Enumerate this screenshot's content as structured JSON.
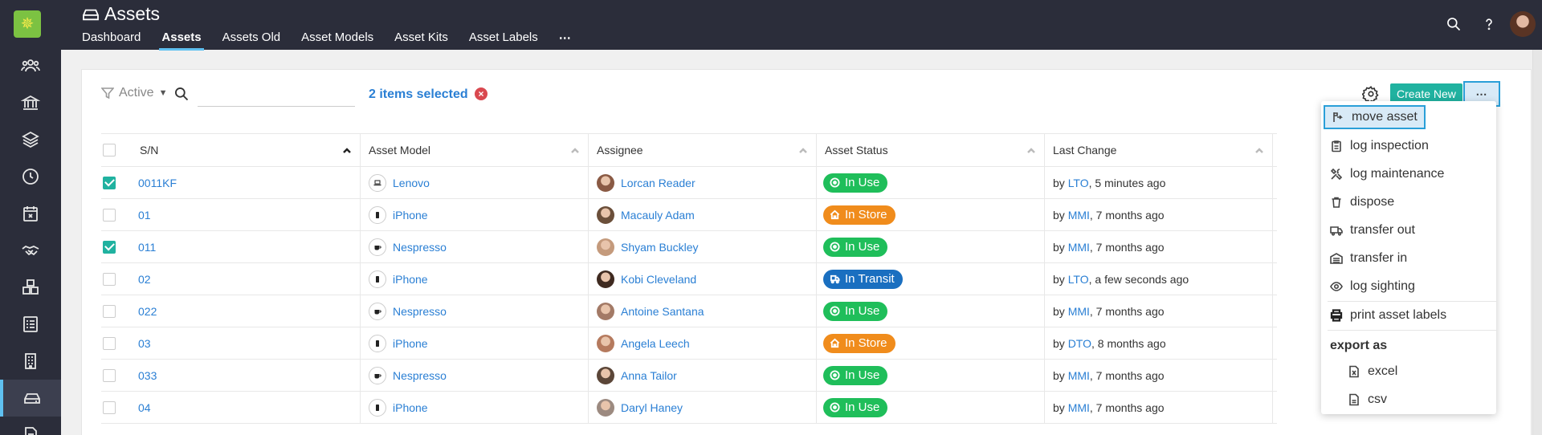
{
  "header": {
    "title": "Assets",
    "tabs": [
      {
        "label": "Dashboard",
        "active": false
      },
      {
        "label": "Assets",
        "active": true
      },
      {
        "label": "Assets Old",
        "active": false
      },
      {
        "label": "Asset Models",
        "active": false
      },
      {
        "label": "Asset Kits",
        "active": false
      },
      {
        "label": "Asset Labels",
        "active": false
      }
    ],
    "more_tabs": "⋯",
    "icons": [
      "search-icon",
      "help-icon",
      "user-avatar"
    ]
  },
  "sidebar": {
    "logo": "✵",
    "items": [
      {
        "icon": "people-icon",
        "active": false
      },
      {
        "icon": "bank-icon",
        "active": false
      },
      {
        "icon": "layers-icon",
        "active": false
      },
      {
        "icon": "clock-icon",
        "active": false
      },
      {
        "icon": "calendar-x-icon",
        "active": false
      },
      {
        "icon": "handshake-icon",
        "active": false
      },
      {
        "icon": "boxes-icon",
        "active": false
      },
      {
        "icon": "checklist-icon",
        "active": false
      },
      {
        "icon": "building-icon",
        "active": false
      },
      {
        "icon": "hard-drive-icon",
        "active": true
      },
      {
        "icon": "document-icon",
        "active": false
      }
    ]
  },
  "toolbar": {
    "filter_label": "Active",
    "search_placeholder": "",
    "selection_text": "2 items selected",
    "create_label": "Create New",
    "more_label": "⋯"
  },
  "table": {
    "columns": [
      "S/N",
      "Asset Model",
      "Assignee",
      "Asset Status",
      "Last Change"
    ],
    "rows": [
      {
        "checked": true,
        "sn": "0011KF",
        "model": "Lenovo",
        "model_icon": "laptop-icon",
        "assignee": "Lorcan Reader",
        "status": "In Use",
        "status_type": "in-use",
        "by": "LTO",
        "when": ", 5 minutes ago"
      },
      {
        "checked": false,
        "sn": "01",
        "model": "iPhone",
        "model_icon": "phone-icon",
        "assignee": "Macauly Adam",
        "status": "In Store",
        "status_type": "in-store",
        "by": "MMI",
        "when": ", 7 months ago"
      },
      {
        "checked": true,
        "sn": "011",
        "model": "Nespresso",
        "model_icon": "coffee-icon",
        "assignee": "Shyam Buckley",
        "status": "In Use",
        "status_type": "in-use",
        "by": "MMI",
        "when": ", 7 months ago"
      },
      {
        "checked": false,
        "sn": "02",
        "model": "iPhone",
        "model_icon": "phone-icon",
        "assignee": "Kobi Cleveland",
        "status": "In Transit",
        "status_type": "in-transit",
        "by": "LTO",
        "when": ", a few seconds ago"
      },
      {
        "checked": false,
        "sn": "022",
        "model": "Nespresso",
        "model_icon": "coffee-icon",
        "assignee": "Antoine Santana",
        "status": "In Use",
        "status_type": "in-use",
        "by": "MMI",
        "when": ", 7 months ago"
      },
      {
        "checked": false,
        "sn": "03",
        "model": "iPhone",
        "model_icon": "phone-icon",
        "assignee": "Angela Leech",
        "status": "In Store",
        "status_type": "in-store",
        "by": "DTO",
        "when": ", 8 months ago"
      },
      {
        "checked": false,
        "sn": "033",
        "model": "Nespresso",
        "model_icon": "coffee-icon",
        "assignee": "Anna Tailor",
        "status": "In Use",
        "status_type": "in-use",
        "by": "MMI",
        "when": ", 7 months ago"
      },
      {
        "checked": false,
        "sn": "04",
        "model": "iPhone",
        "model_icon": "phone-icon",
        "assignee": "Daryl Haney",
        "status": "In Use",
        "status_type": "in-use",
        "by": "MMI",
        "when": ", 7 months ago"
      }
    ],
    "by_prefix": "by "
  },
  "actions_menu": {
    "items": [
      {
        "label": "move asset",
        "icon": "move-icon",
        "highlighted": true
      },
      {
        "label": "log inspection",
        "icon": "clipboard-icon"
      },
      {
        "label": "log maintenance",
        "icon": "tools-icon"
      },
      {
        "label": "dispose",
        "icon": "trash-icon"
      },
      {
        "label": "transfer out",
        "icon": "truck-icon"
      },
      {
        "label": "transfer in",
        "icon": "warehouse-icon"
      },
      {
        "label": "log sighting",
        "icon": "eye-icon"
      }
    ],
    "print_label": "print asset labels",
    "export_heading": "export as",
    "export_items": [
      {
        "label": "excel",
        "icon": "excel-file-icon"
      },
      {
        "label": "csv",
        "icon": "csv-file-icon"
      }
    ]
  },
  "colors": {
    "nav_bg": "#2b2d3a",
    "accent": "#20b2a0",
    "link": "#2a7fd4",
    "in_use": "#1fbe5a",
    "in_store": "#f08c1c",
    "in_transit": "#1a6fc0"
  }
}
